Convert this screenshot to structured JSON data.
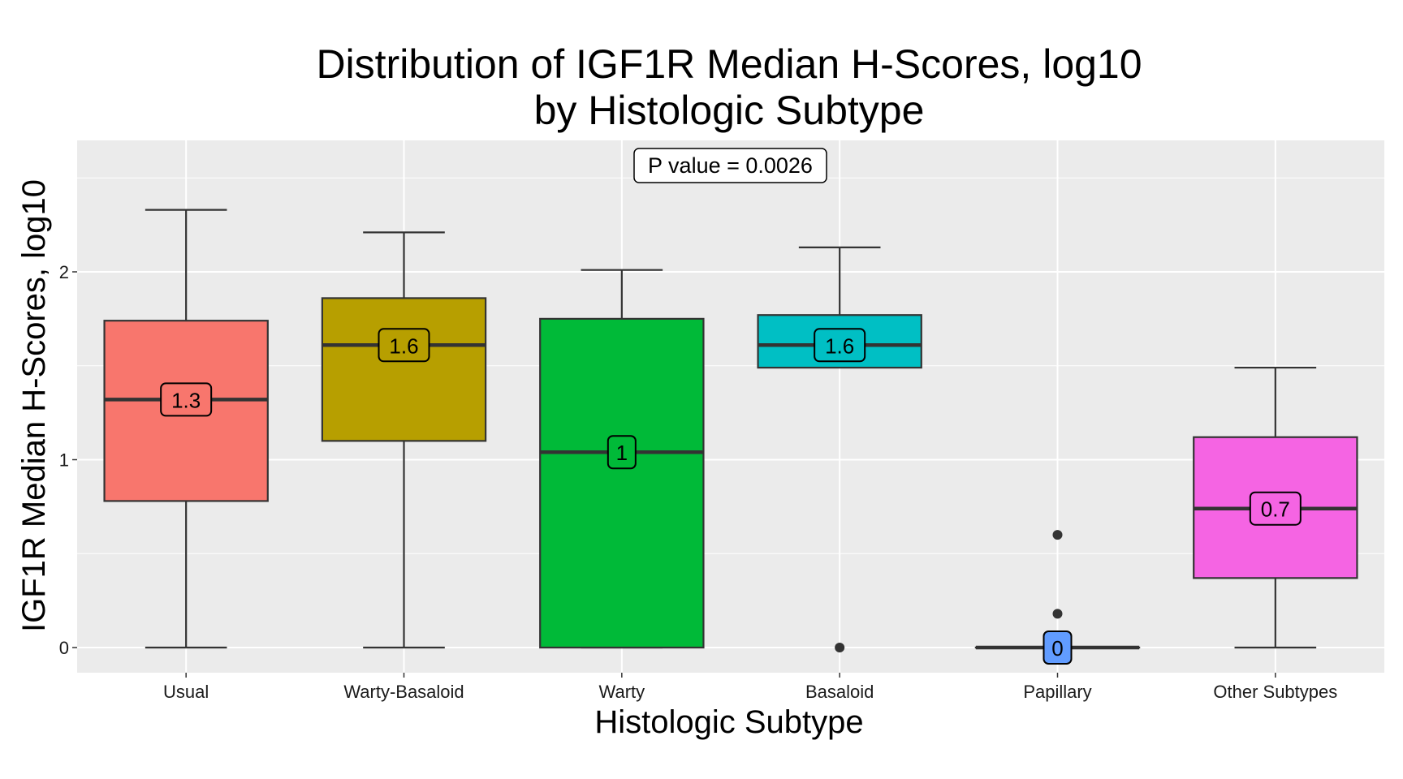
{
  "chart_data": {
    "type": "box",
    "title": [
      "Distribution of IGF1R Median H-Scores, log10",
      "by Histologic Subtype"
    ],
    "xlabel": "Histologic Subtype",
    "ylabel": "IGF1R Median H-Scores, log10",
    "ylim": [
      -0.13,
      2.7
    ],
    "yticks": [
      0,
      1,
      2
    ],
    "yticks_text": [
      "0",
      "1",
      "2"
    ],
    "grid": true,
    "legend": "none",
    "annotation": "P value = 0.0026",
    "categories": [
      "Usual",
      "Warty-Basaloid",
      "Warty",
      "Basaloid",
      "Papillary",
      "Other Subtypes"
    ],
    "colors": [
      "#F8766D",
      "#B79F00",
      "#00BA38",
      "#00BFC4",
      "#619CFF",
      "#F564E3"
    ],
    "boxes": [
      {
        "name": "Usual",
        "min": 0,
        "q1": 0.78,
        "median": 1.32,
        "q3": 1.74,
        "max": 2.33,
        "outliers": [],
        "label": "1.3"
      },
      {
        "name": "Warty-Basaloid",
        "min": 0,
        "q1": 1.1,
        "median": 1.61,
        "q3": 1.86,
        "max": 2.21,
        "outliers": [],
        "label": "1.6"
      },
      {
        "name": "Warty",
        "min": 0,
        "q1": 0,
        "median": 1.04,
        "q3": 1.75,
        "max": 2.01,
        "outliers": [],
        "label": "1"
      },
      {
        "name": "Basaloid",
        "min": 1.49,
        "q1": 1.49,
        "median": 1.61,
        "q3": 1.77,
        "max": 2.13,
        "outliers": [
          0
        ],
        "label": "1.6"
      },
      {
        "name": "Papillary",
        "min": 0,
        "q1": 0,
        "median": 0,
        "q3": 0,
        "max": 0,
        "outliers": [
          0.6,
          0.18
        ],
        "label": "0"
      },
      {
        "name": "Other Subtypes",
        "min": 0,
        "q1": 0.37,
        "median": 0.74,
        "q3": 1.12,
        "max": 1.49,
        "outliers": [],
        "label": "0.7"
      }
    ]
  }
}
